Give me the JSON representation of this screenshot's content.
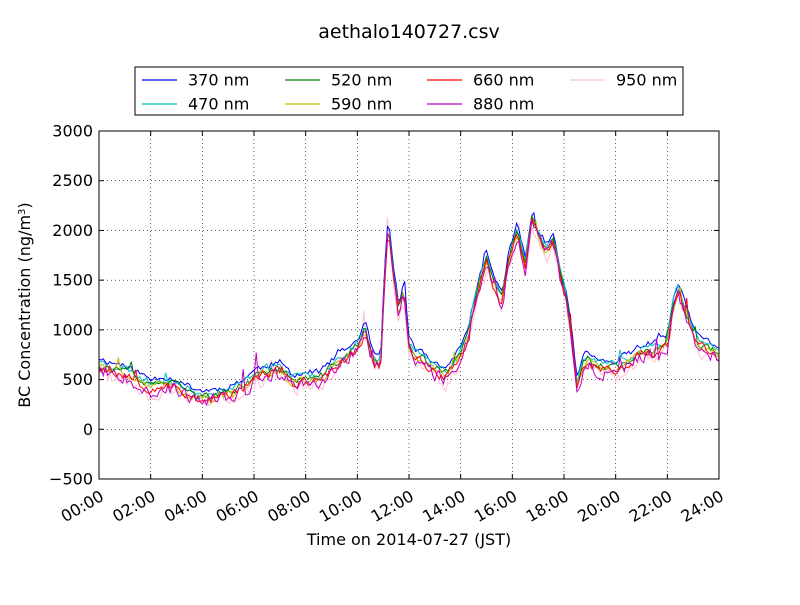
{
  "chart_data": {
    "type": "line",
    "title": "aethalo140727.csv",
    "xlabel": "Time on 2014-07-27 (JST)",
    "ylabel": "BC Concentration (ng/m³)",
    "ylabel_base": "BC Concentration (ng/m",
    "ylabel_sup": "3",
    "ylabel_tail": ")",
    "xlim": [
      0,
      24
    ],
    "ylim": [
      -500,
      3000
    ],
    "x_ticks": [
      0,
      2,
      4,
      6,
      8,
      10,
      12,
      14,
      16,
      18,
      20,
      22,
      24
    ],
    "x_tick_labels": [
      "00:00",
      "02:00",
      "04:00",
      "06:00",
      "08:00",
      "10:00",
      "12:00",
      "14:00",
      "16:00",
      "18:00",
      "20:00",
      "22:00",
      "24:00"
    ],
    "y_ticks": [
      -500,
      0,
      500,
      1000,
      1500,
      2000,
      2500,
      3000
    ],
    "y_tick_labels": [
      "−500",
      "0",
      "500",
      "1000",
      "1500",
      "2000",
      "2500",
      "3000"
    ],
    "grid": true,
    "legend_position": "top",
    "x_unit": "hour",
    "baseline": {
      "x": [
        0,
        0.5,
        1,
        1.5,
        2,
        2.5,
        3,
        3.5,
        4,
        4.5,
        5,
        5.5,
        6,
        6.5,
        7,
        7.5,
        8,
        8.5,
        9,
        9.5,
        10,
        10.3,
        10.6,
        10.9,
        11.05,
        11.2,
        11.4,
        11.6,
        11.8,
        12,
        12.3,
        12.6,
        13,
        13.5,
        14,
        14.3,
        14.6,
        15,
        15.3,
        15.6,
        15.9,
        16.2,
        16.5,
        16.75,
        17,
        17.3,
        17.6,
        17.9,
        18.1,
        18.3,
        18.5,
        18.8,
        19.2,
        19.6,
        20,
        20.5,
        21,
        21.5,
        22,
        22.2,
        22.4,
        22.6,
        22.9,
        23.2,
        23.5,
        24
      ],
      "y": [
        650,
        600,
        580,
        500,
        430,
        470,
        430,
        360,
        320,
        330,
        360,
        420,
        520,
        580,
        600,
        480,
        500,
        500,
        620,
        720,
        830,
        1000,
        700,
        650,
        1500,
        2050,
        1550,
        1200,
        1400,
        850,
        750,
        680,
        600,
        550,
        780,
        950,
        1350,
        1700,
        1450,
        1300,
        1750,
        2000,
        1650,
        2100,
        1950,
        1800,
        1900,
        1500,
        1300,
        900,
        450,
        700,
        650,
        600,
        620,
        680,
        780,
        800,
        870,
        1200,
        1400,
        1250,
        1050,
        850,
        820,
        760
      ]
    },
    "series": [
      {
        "name": "370 nm",
        "color": "#0000ff",
        "offset": 70,
        "amp": 55,
        "seed": 11
      },
      {
        "name": "470 nm",
        "color": "#00bfbf",
        "offset": 40,
        "amp": 55,
        "seed": 23
      },
      {
        "name": "520 nm",
        "color": "#008000",
        "offset": 10,
        "amp": 60,
        "seed": 37
      },
      {
        "name": "590 nm",
        "color": "#bfbf00",
        "offset": -10,
        "amp": 70,
        "seed": 41
      },
      {
        "name": "660 nm",
        "color": "#ff0000",
        "offset": -20,
        "amp": 80,
        "seed": 53
      },
      {
        "name": "880 nm",
        "color": "#bf00bf",
        "offset": -40,
        "amp": 110,
        "seed": 67
      },
      {
        "name": "950 nm",
        "color": "#ffc0cb",
        "offset": -60,
        "amp": 130,
        "seed": 79
      }
    ]
  }
}
